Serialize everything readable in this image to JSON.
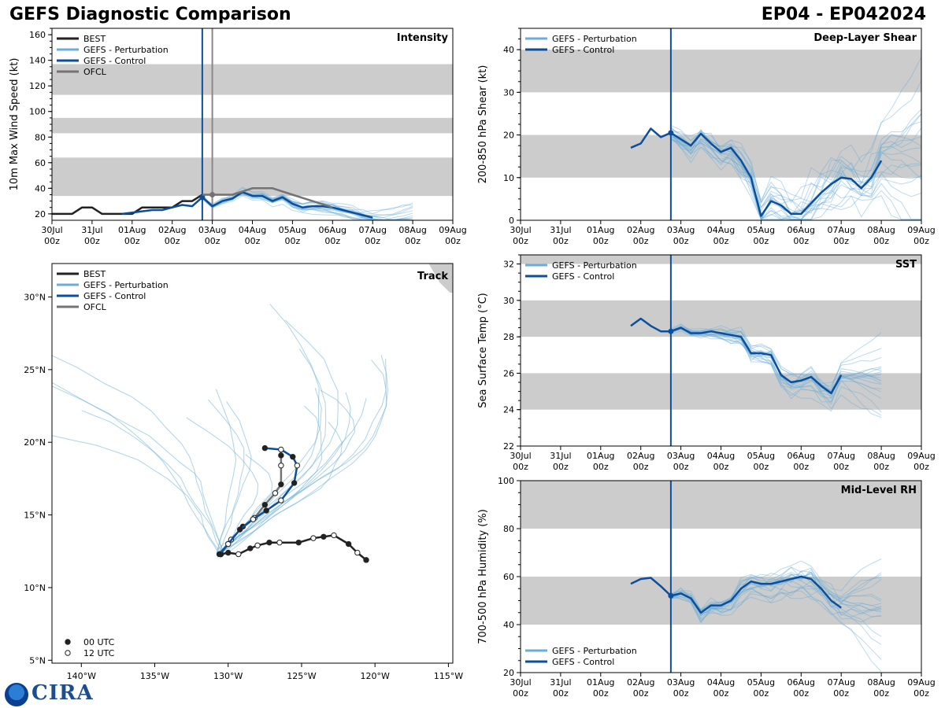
{
  "title": "GEFS Diagnostic Comparison",
  "storm_id": "EP04 - EP042024",
  "logo_text": "CIRA",
  "colors": {
    "best": "#222222",
    "perturbation": "#6aaed6",
    "control": "#0b4f9c",
    "ofcl": "#737373",
    "band": "#cccccc",
    "vline_now": "#0b4f9c",
    "vline_ofcl": "#888888"
  },
  "time_ticks": [
    "30Jul",
    "31Jul",
    "01Aug",
    "02Aug",
    "03Aug",
    "04Aug",
    "05Aug",
    "06Aug",
    "07Aug",
    "08Aug",
    "09Aug"
  ],
  "time_tick_sub": "00z",
  "chart_data": [
    {
      "type": "line",
      "id": "intensity",
      "panel_label": "Intensity",
      "ylabel": "10m Max Wind Speed (kt)",
      "xlim": [
        0,
        10
      ],
      "ylim": [
        15,
        165
      ],
      "yticks": [
        20,
        40,
        60,
        80,
        100,
        120,
        140,
        160
      ],
      "bands": [
        [
          34,
          64
        ],
        [
          83,
          95
        ],
        [
          113,
          137
        ]
      ],
      "legend": [
        "BEST",
        "GEFS - Perturbation",
        "GEFS - Control",
        "OFCL"
      ],
      "now": 3.75,
      "ofcl_vline": 4.0,
      "series": [
        {
          "name": "BEST",
          "x": [
            0,
            0.5,
            0.75,
            1.0,
            1.25,
            1.5,
            1.75,
            2.0,
            2.25,
            2.5,
            2.75,
            3.0,
            3.25,
            3.5,
            3.75
          ],
          "y": [
            20,
            20,
            25,
            25,
            20,
            20,
            20,
            20,
            25,
            25,
            25,
            25,
            30,
            30,
            35
          ]
        },
        {
          "name": "GEFS - Control",
          "x": [
            1.75,
            2.0,
            2.25,
            2.5,
            2.75,
            3.0,
            3.25,
            3.5,
            3.75,
            4.0,
            4.25,
            4.5,
            4.75,
            5.0,
            5.25,
            5.5,
            5.75,
            6.0,
            6.25,
            6.5,
            6.75,
            7.0,
            7.25,
            7.5,
            7.75,
            8.0
          ],
          "y": [
            20,
            21,
            22,
            23,
            23,
            25,
            27,
            26,
            33,
            26,
            30,
            32,
            37,
            34,
            34,
            30,
            33,
            28,
            25,
            26,
            26,
            25,
            23,
            21,
            19,
            17
          ]
        },
        {
          "name": "OFCL",
          "x": [
            3.75,
            4.0,
            4.5,
            5.0,
            5.5,
            6.0,
            6.5,
            7.0
          ],
          "y": [
            35,
            35,
            35,
            40,
            40,
            35,
            30,
            25
          ]
        }
      ]
    },
    {
      "type": "line",
      "id": "shear",
      "panel_label": "Deep-Layer Shear",
      "ylabel": "200-850 hPa Shear (kt)",
      "xlim": [
        0,
        10
      ],
      "ylim": [
        0,
        45
      ],
      "yticks": [
        0,
        10,
        20,
        30,
        40
      ],
      "bands": [
        [
          10,
          20
        ],
        [
          30,
          40
        ]
      ],
      "legend": [
        "GEFS - Perturbation",
        "GEFS - Control"
      ],
      "now": 3.75,
      "series": [
        {
          "name": "GEFS - Control",
          "x": [
            2.75,
            3.0,
            3.25,
            3.5,
            3.75,
            4.0,
            4.25,
            4.5,
            4.75,
            5.0,
            5.25,
            5.5,
            5.75,
            6.0,
            6.25,
            6.5,
            6.75,
            7.0,
            7.25,
            7.5,
            7.75,
            8.0,
            8.25,
            8.5,
            8.75,
            9.0
          ],
          "y": [
            17,
            18,
            21.5,
            19.5,
            20.5,
            19,
            17.5,
            20.3,
            18,
            16,
            17,
            14,
            10,
            1,
            4.5,
            3.5,
            1.5,
            1.5,
            4,
            6.5,
            8.5,
            10,
            9.7,
            7.5,
            10,
            14
          ]
        }
      ]
    },
    {
      "type": "line",
      "id": "sst",
      "panel_label": "SST",
      "ylabel": "Sea Surface Temp (°C)",
      "xlim": [
        0,
        10
      ],
      "ylim": [
        22,
        32.5
      ],
      "yticks": [
        22,
        24,
        26,
        28,
        30,
        32
      ],
      "bands": [
        [
          24,
          26
        ],
        [
          28,
          30
        ],
        [
          32,
          33
        ]
      ],
      "legend": [
        "GEFS - Perturbation",
        "GEFS - Control"
      ],
      "now": 3.75,
      "series": [
        {
          "name": "GEFS - Control",
          "x": [
            2.75,
            3.0,
            3.25,
            3.5,
            3.75,
            4.0,
            4.25,
            4.5,
            4.75,
            5.0,
            5.25,
            5.5,
            5.75,
            6.0,
            6.25,
            6.5,
            6.75,
            7.0,
            7.25,
            7.5,
            7.75,
            8.0
          ],
          "y": [
            28.6,
            29.0,
            28.6,
            28.3,
            28.3,
            28.5,
            28.2,
            28.2,
            28.3,
            28.2,
            28.1,
            28.0,
            27.1,
            27.1,
            27.0,
            25.9,
            25.5,
            25.6,
            25.8,
            25.3,
            24.9,
            25.9
          ]
        }
      ]
    },
    {
      "type": "line",
      "id": "rh",
      "panel_label": "Mid-Level RH",
      "ylabel": "700-500 hPa Humidity (%)",
      "xlim": [
        0,
        10
      ],
      "ylim": [
        20,
        100
      ],
      "yticks": [
        20,
        40,
        60,
        80,
        100
      ],
      "bands": [
        [
          40,
          60
        ],
        [
          80,
          100
        ]
      ],
      "legend": [
        "GEFS - Perturbation",
        "GEFS - Control"
      ],
      "now": 3.75,
      "series": [
        {
          "name": "GEFS - Control",
          "x": [
            2.75,
            3.0,
            3.25,
            3.5,
            3.75,
            4.0,
            4.25,
            4.5,
            4.75,
            5.0,
            5.25,
            5.5,
            5.75,
            6.0,
            6.25,
            6.5,
            6.75,
            7.0,
            7.25,
            7.5,
            7.75,
            8.0
          ],
          "y": [
            57,
            59,
            59.5,
            56,
            52,
            53,
            51,
            45,
            48,
            48,
            50,
            55,
            58,
            57,
            57,
            58,
            59,
            60,
            59,
            55,
            50,
            47
          ]
        }
      ]
    },
    {
      "type": "line",
      "id": "track",
      "panel_label": "Track",
      "xlim": [
        -142,
        -114.7
      ],
      "ylim": [
        4.8,
        32.3
      ],
      "xticks": [
        -140,
        -135,
        -130,
        -125,
        -120,
        -115
      ],
      "xtick_labels": [
        "140°W",
        "135°W",
        "130°W",
        "125°W",
        "120°W",
        "115°W"
      ],
      "yticks": [
        5,
        10,
        15,
        20,
        25,
        30
      ],
      "ytick_labels": [
        "5°N",
        "10°N",
        "15°N",
        "20°N",
        "25°N",
        "30°N"
      ],
      "legend": [
        "BEST",
        "GEFS - Perturbation",
        "GEFS - Control",
        "OFCL"
      ],
      "marker_legend": [
        "00 UTC",
        "12 UTC"
      ],
      "series": [
        {
          "name": "BEST",
          "lon": [
            -120.6,
            -121.2,
            -121.8,
            -122.8,
            -123.5,
            -124.2,
            -125.2,
            -126.5,
            -127.2,
            -128.0,
            -128.5,
            -129.3,
            -130.0,
            -130.5
          ],
          "lat": [
            11.9,
            12.4,
            13.0,
            13.6,
            13.5,
            13.4,
            13.1,
            13.1,
            13.1,
            12.9,
            12.7,
            12.3,
            12.4,
            12.3
          ]
        },
        {
          "name": "GEFS - Control",
          "lon": [
            -130.6,
            -130.0,
            -129.2,
            -128.3,
            -127.4,
            -126.4,
            -125.5,
            -125.3,
            -125.6,
            -126.4,
            -127.5
          ],
          "lat": [
            12.3,
            13.0,
            14.0,
            14.7,
            15.3,
            16.0,
            17.2,
            18.4,
            19.0,
            19.5,
            19.6
          ]
        },
        {
          "name": "OFCL",
          "lon": [
            -130.5,
            -129.8,
            -129.0,
            -128.2,
            -127.5,
            -126.8,
            -126.4,
            -126.4,
            -126.4
          ],
          "lat": [
            12.3,
            13.3,
            14.2,
            14.8,
            15.7,
            16.5,
            17.1,
            18.4,
            19.1
          ]
        }
      ]
    }
  ]
}
